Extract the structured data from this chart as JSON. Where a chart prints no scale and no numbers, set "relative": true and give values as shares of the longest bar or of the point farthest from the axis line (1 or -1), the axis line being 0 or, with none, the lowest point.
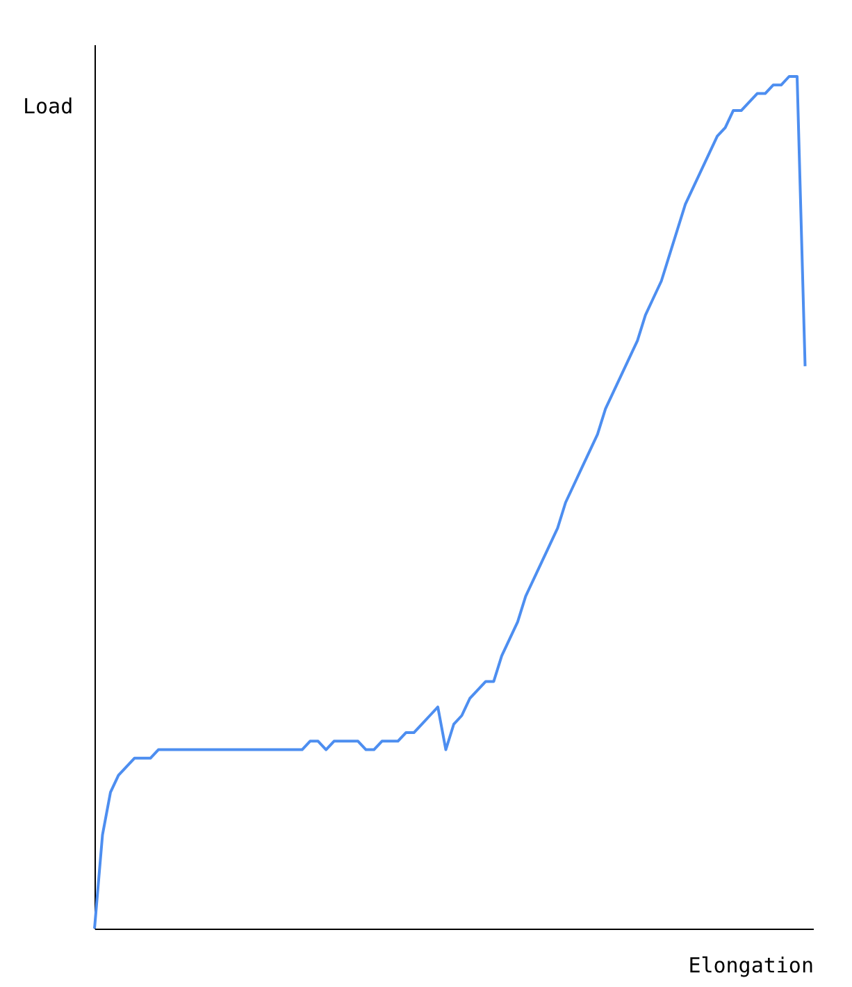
{
  "chart_data": {
    "type": "line",
    "relative": true,
    "xlabel": "Elongation",
    "ylabel": "Load",
    "grid": false,
    "legend": false,
    "marker": "none",
    "line_style": "solid",
    "categories": [
      null,
      null,
      null,
      null,
      null,
      null,
      null,
      null,
      null,
      null,
      null,
      null,
      null,
      null,
      null,
      null,
      null,
      null,
      null,
      null,
      null,
      null,
      null,
      null,
      null,
      null,
      null,
      null,
      null,
      null,
      null,
      null,
      null,
      null,
      null,
      null,
      null,
      null,
      null,
      null,
      null,
      null,
      null,
      null,
      null,
      null,
      null,
      null,
      null,
      null,
      null,
      null,
      null,
      null,
      null,
      null,
      null,
      null,
      null,
      null,
      null,
      null,
      null,
      null,
      null,
      null,
      null,
      null,
      null,
      null,
      null,
      null,
      null,
      null,
      null,
      null,
      null,
      null,
      null,
      null,
      null,
      null,
      null,
      null,
      null,
      null,
      null,
      null,
      null,
      null
    ],
    "series": [
      {
        "color": "#4d8ef0",
        "values": [
          0,
          0.11,
          0.16,
          0.18,
          0.19,
          0.2,
          0.2,
          0.2,
          0.21,
          0.21,
          0.21,
          0.21,
          0.21,
          0.21,
          0.21,
          0.21,
          0.21,
          0.21,
          0.21,
          0.21,
          0.21,
          0.21,
          0.21,
          0.21,
          0.21,
          0.21,
          0.21,
          0.22,
          0.22,
          0.21,
          0.22,
          0.22,
          0.22,
          0.22,
          0.21,
          0.21,
          0.22,
          0.22,
          0.22,
          0.23,
          0.23,
          0.24,
          0.25,
          0.26,
          0.21,
          0.24,
          0.25,
          0.27,
          0.28,
          0.29,
          0.29,
          0.32,
          0.34,
          0.36,
          0.39,
          0.41,
          0.43,
          0.45,
          0.47,
          0.5,
          0.52,
          0.54,
          0.56,
          0.58,
          0.61,
          0.63,
          0.65,
          0.67,
          0.69,
          0.72,
          0.74,
          0.76,
          0.79,
          0.82,
          0.85,
          0.87,
          0.89,
          0.91,
          0.93,
          0.94,
          0.96,
          0.96,
          0.97,
          0.98,
          0.98,
          0.99,
          0.99,
          1,
          1,
          0.66
        ]
      }
    ]
  }
}
